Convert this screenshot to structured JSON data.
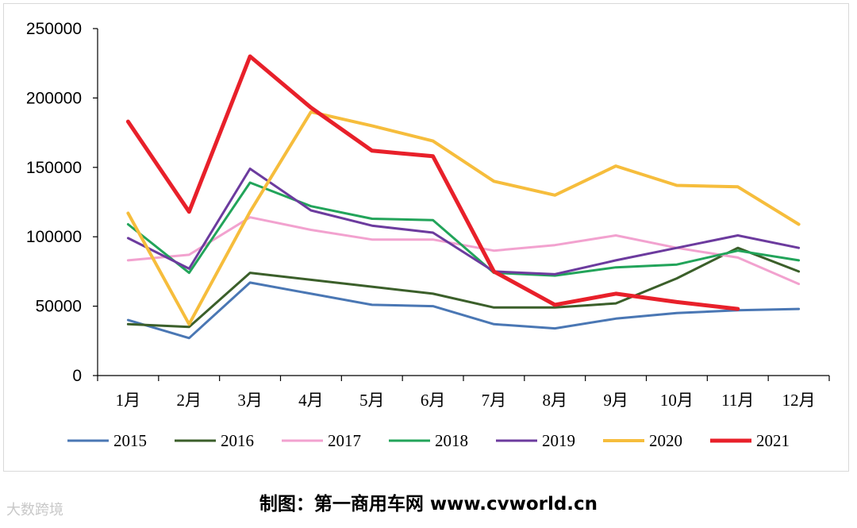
{
  "chart_data": {
    "type": "line",
    "categories": [
      "1月",
      "2月",
      "3月",
      "4月",
      "5月",
      "6月",
      "7月",
      "8月",
      "9月",
      "10月",
      "11月",
      "12月"
    ],
    "ylim": [
      0,
      250000
    ],
    "yticks": [
      0,
      50000,
      100000,
      150000,
      200000,
      250000
    ],
    "legend_position": "bottom",
    "series": [
      {
        "name": "2015",
        "color": "#4a77b4",
        "values": [
          40000,
          27000,
          67000,
          59000,
          51000,
          50000,
          37000,
          34000,
          41000,
          45000,
          47000,
          48000
        ]
      },
      {
        "name": "2016",
        "color": "#3b5f2a",
        "values": [
          37000,
          35000,
          74000,
          69000,
          64000,
          59000,
          49000,
          49000,
          52000,
          70000,
          92000,
          75000
        ]
      },
      {
        "name": "2017",
        "color": "#f2a2cf",
        "values": [
          83000,
          87000,
          114000,
          105000,
          98000,
          98000,
          90000,
          94000,
          101000,
          92000,
          85000,
          66000
        ]
      },
      {
        "name": "2018",
        "color": "#22a45a",
        "values": [
          109000,
          74000,
          139000,
          122000,
          113000,
          112000,
          74000,
          72000,
          78000,
          80000,
          90000,
          83000
        ]
      },
      {
        "name": "2019",
        "color": "#6c3b9e",
        "values": [
          99000,
          77000,
          149000,
          119000,
          108000,
          103000,
          75000,
          73000,
          83000,
          92000,
          101000,
          92000
        ]
      },
      {
        "name": "2020",
        "color": "#f6bd3c",
        "values": [
          117000,
          37000,
          118000,
          190000,
          180000,
          169000,
          140000,
          130000,
          151000,
          137000,
          136000,
          109000
        ]
      },
      {
        "name": "2021",
        "color": "#e8202a",
        "values": [
          183000,
          118000,
          230000,
          193000,
          162000,
          158000,
          75000,
          51000,
          59000,
          53000,
          48000,
          null
        ]
      }
    ]
  },
  "credit": "制图：第一商用车网 www.cvworld.cn",
  "watermark": "大数跨境"
}
